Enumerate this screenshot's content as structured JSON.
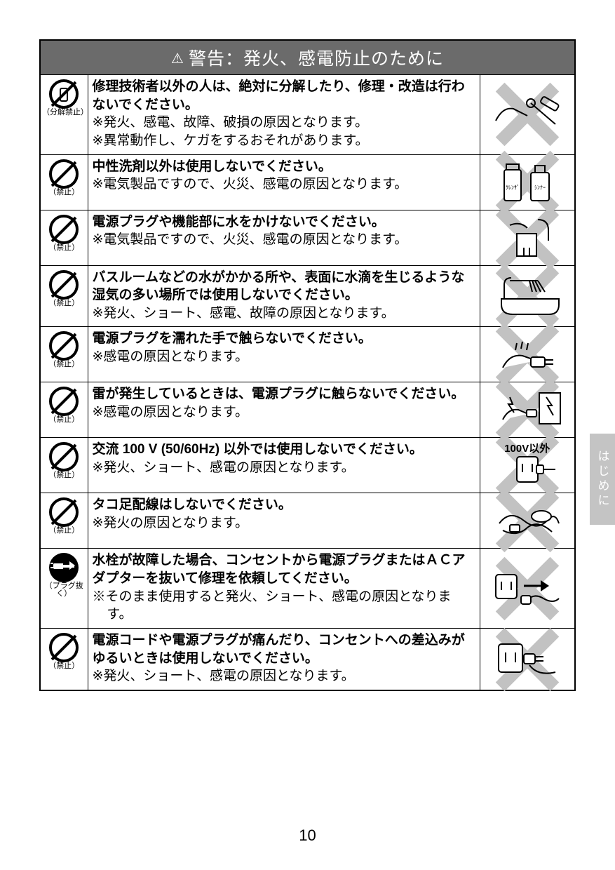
{
  "header": {
    "title": "警告：発火、感電防止のために",
    "icon_label": "warning-triangle"
  },
  "side_tab": "はじめに",
  "page_number": "10",
  "colors": {
    "header_bg": "#6b6b6b",
    "header_text": "#ffffff",
    "border": "#000000",
    "x_gray": "#c2c2c2",
    "tab_bg": "#c4c4c4"
  },
  "rows": [
    {
      "icon_type": "no-disassemble",
      "icon_caption": "（分解禁止）",
      "bold": "修理技術者以外の人は、絶対に分解したり、修理・改造は行わないでください。",
      "notes": [
        "※発火、感電、故障、破損の原因となります。",
        "※異常動作し、ケガをするおそれがあります。"
      ],
      "illustration": "wrench-hand"
    },
    {
      "icon_type": "prohibit",
      "icon_caption": "（禁止）",
      "bold": "中性洗剤以外は使用しないでください。",
      "notes": [
        "※電気製品ですので、火災、感電の原因となります。"
      ],
      "illustration": "cleanser-thinner-bottles"
    },
    {
      "icon_type": "prohibit",
      "icon_caption": "（禁止）",
      "bold": "電源プラグや機能部に水をかけないでください。",
      "notes": [
        "※電気製品ですので、火災、感電の原因となります。"
      ],
      "illustration": "water-on-unit"
    },
    {
      "icon_type": "prohibit",
      "icon_caption": "（禁止）",
      "bold": "バスルームなどの水がかかる所や、表面に水滴を生じるような湿気の多い場所では使用しないでください。",
      "notes": [
        "※発火、ショート、感電、故障の原因となります。"
      ],
      "illustration": "shower-bathtub"
    },
    {
      "icon_type": "prohibit",
      "icon_caption": "（禁止）",
      "bold": "電源プラグを濡れた手で触らないでください。",
      "notes": [
        "※感電の原因となります。"
      ],
      "illustration": "wet-hand-plug"
    },
    {
      "icon_type": "prohibit",
      "icon_caption": "（禁止）",
      "bold": "雷が発生しているときは、電源プラグに触らないでください。",
      "notes": [
        "※感電の原因となります。"
      ],
      "illustration": "lightning-hands"
    },
    {
      "icon_type": "prohibit",
      "icon_caption": "（禁止）",
      "bold": "交流 100 V (50/60Hz) 以外では使用しないでください。",
      "notes": [
        "※発火、ショート、感電の原因となります。"
      ],
      "illustration": "100v-outlet",
      "ill_label": "100V以外"
    },
    {
      "icon_type": "prohibit",
      "icon_caption": "（禁止）",
      "bold": "タコ足配線はしないでください。",
      "notes": [
        "※発火の原因となります。"
      ],
      "illustration": "octopus-wiring"
    },
    {
      "icon_type": "unplug",
      "icon_caption": "（プラグ抜く）",
      "bold": "水栓が故障した場合、コンセントから電源プラグまたはＡＣアダプターを抜いて修理を依頼してください。",
      "notes_indent": [
        "※そのまま使用すると発火、ショート、感電の原因となります。"
      ],
      "illustration": "unplug-outlet"
    },
    {
      "icon_type": "prohibit",
      "icon_caption": "（禁止）",
      "bold": "電源コードや電源プラグが痛んだり、コンセントへの差込みがゆるいときは使用しないでください。",
      "notes": [
        "※発火、ショート、感電の原因となります。"
      ],
      "illustration": "loose-plug"
    }
  ]
}
